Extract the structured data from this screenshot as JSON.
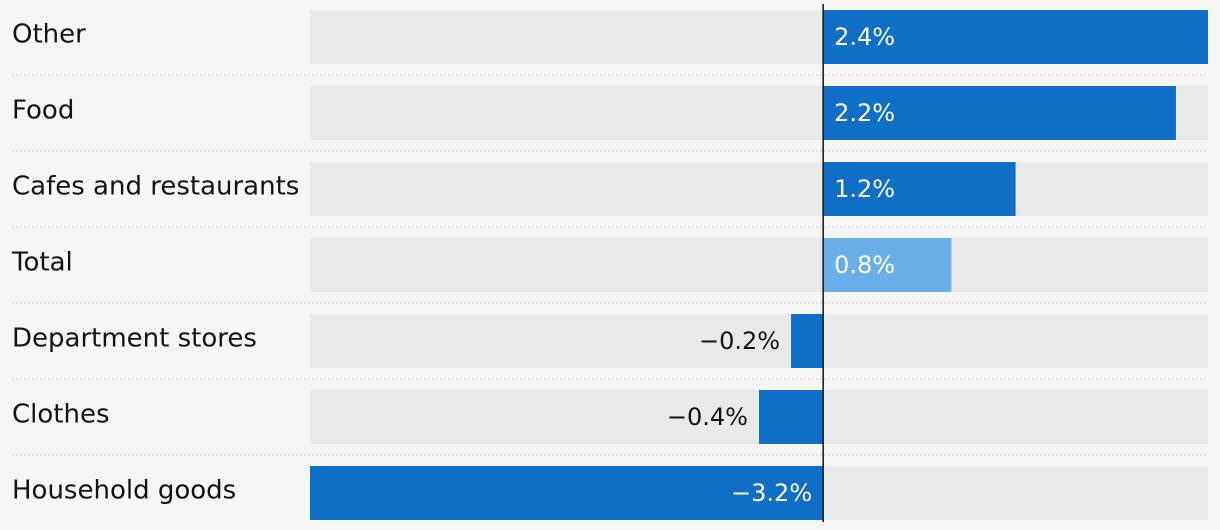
{
  "chart_data": {
    "type": "bar",
    "orientation": "horizontal",
    "categories": [
      "Other",
      "Food",
      "Cafes and restaurants",
      "Total",
      "Department stores",
      "Clothes",
      "Household goods"
    ],
    "values": [
      2.4,
      2.2,
      1.2,
      0.8,
      -0.2,
      -0.4,
      -3.2
    ],
    "value_labels": [
      "2.4%",
      "2.2%",
      "1.2%",
      "0.8%",
      "−0.2%",
      "−0.4%",
      "−3.2%"
    ],
    "highlight_category": "Total",
    "xlim": [
      -3.2,
      2.4
    ],
    "grid": false,
    "title": "",
    "xlabel": "",
    "ylabel": ""
  },
  "colors": {
    "bar": "#0f6fc6",
    "highlight_bar": "#69afe9",
    "track": "#e9e9e9",
    "background": "#f6f6f6",
    "label_text": "#121212",
    "bar_text": "#ffffff",
    "zero_line": "#121212",
    "divider": "#cccccc"
  }
}
